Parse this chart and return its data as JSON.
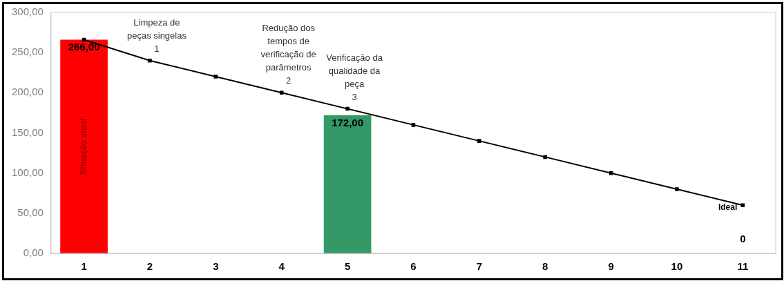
{
  "chart_data": {
    "type": "bar",
    "categories": [
      "1",
      "2",
      "3",
      "4",
      "5",
      "6",
      "7",
      "8",
      "9",
      "10",
      "11"
    ],
    "series": [
      {
        "colors": [
          "#ff0000",
          "#ff0000",
          "#ff0000",
          "#ff0000",
          "#339966",
          "#339966",
          "#339966",
          "#339966",
          "#339966",
          "#339966",
          "#339966"
        ],
        "values": [
          266,
          null,
          null,
          null,
          172,
          null,
          null,
          null,
          null,
          null,
          0
        ],
        "value_labels": [
          "266,00",
          null,
          null,
          null,
          "172,00",
          null,
          null,
          null,
          null,
          null,
          "0"
        ]
      },
      {
        "type": "line",
        "color": "#000000",
        "marker": "square",
        "values": [
          266,
          240,
          220,
          200,
          180,
          160,
          140,
          120,
          100,
          80,
          60
        ]
      }
    ],
    "ylim": [
      0,
      300
    ],
    "yticks": [
      {
        "value": 0,
        "label": "0,00"
      },
      {
        "value": 50,
        "label": "50,00"
      },
      {
        "value": 100,
        "label": "100,00"
      },
      {
        "value": 150,
        "label": "150,00"
      },
      {
        "value": 200,
        "label": "200,00"
      },
      {
        "value": 250,
        "label": "250,00"
      },
      {
        "value": 300,
        "label": "300,00"
      }
    ],
    "grid": false,
    "legend": false,
    "annotations": [
      "Situação atual",
      {
        "text": "Limpeza de\npeças singelas\n1",
        "x": "2",
        "y": 240
      },
      {
        "text": "Redução dos\ntempos de\nverificação de\nparâmetros\n2",
        "x": "4",
        "y": 200
      },
      {
        "text": "Verificação da\nqualidade da\npeça\n3",
        "x": "5",
        "y": 180
      },
      {
        "text": "Ideal",
        "x": "11",
        "y": 60
      }
    ]
  }
}
